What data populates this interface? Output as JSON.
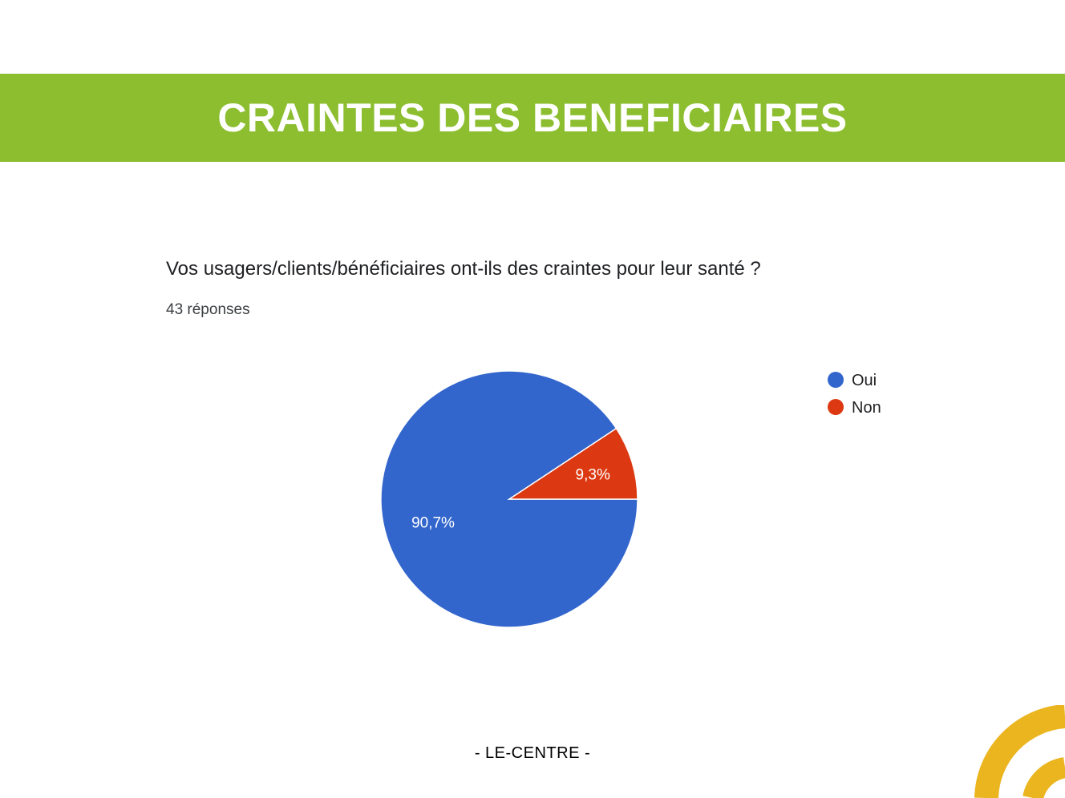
{
  "header": {
    "title": "CRAINTES DES BENEFICIAIRES"
  },
  "question": {
    "text": "Vos usagers/clients/bénéficiaires ont-ils des craintes pour leur santé ?",
    "responses": "43 réponses"
  },
  "footer": {
    "text": "- LE-CENTRE -"
  },
  "colors": {
    "header_band": "#8cbe2f",
    "oui": "#3366cc",
    "non": "#dc3912",
    "logo": "#eab51f"
  },
  "chart_data": {
    "type": "pie",
    "title": "Vos usagers/clients/bénéficiaires ont-ils des craintes pour leur santé ?",
    "categories": [
      "Oui",
      "Non"
    ],
    "values": [
      90.7,
      9.3
    ],
    "labels": [
      "90,7%",
      "9,3%"
    ],
    "colors": [
      "#3366cc",
      "#dc3912"
    ],
    "legend_position": "right"
  }
}
